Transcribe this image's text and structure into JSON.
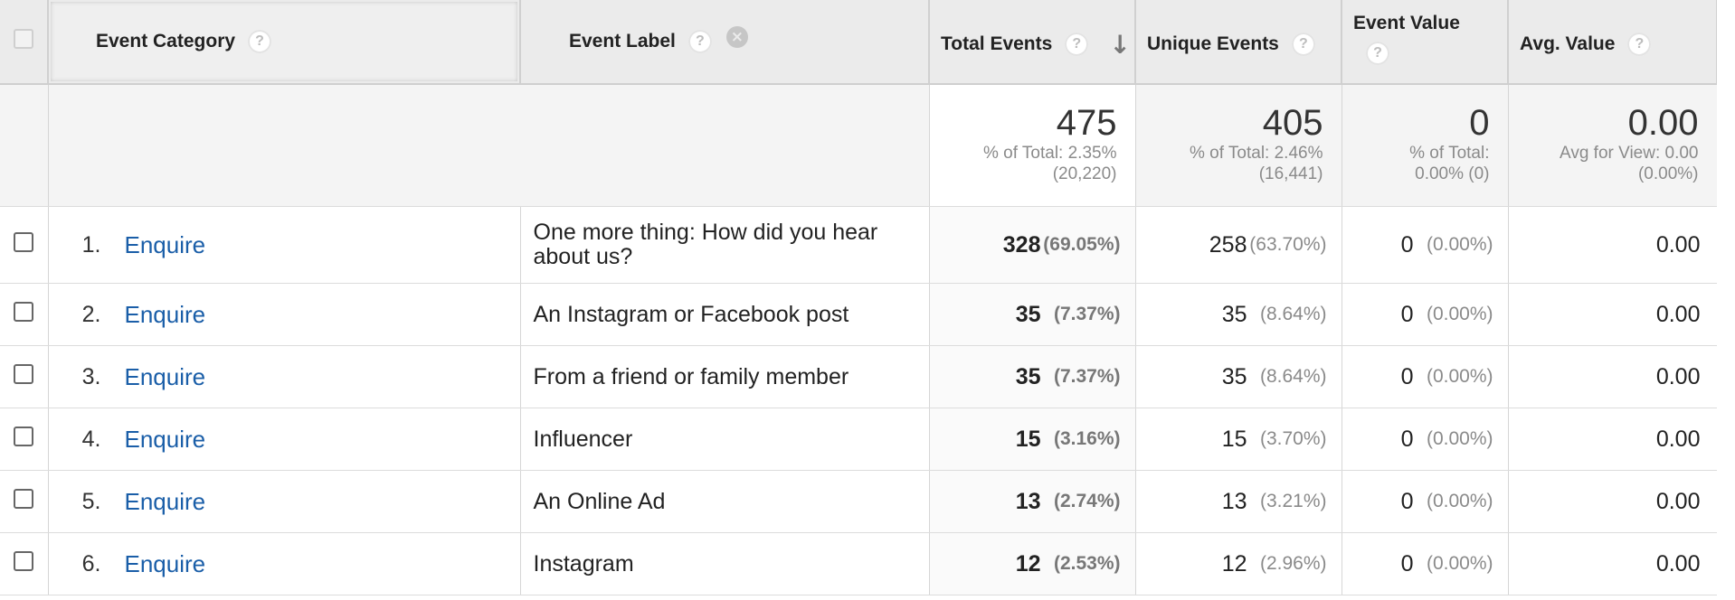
{
  "headers": {
    "event_category": "Event Category",
    "event_label": "Event Label",
    "total_events": "Total Events",
    "unique_events": "Unique Events",
    "event_value": "Event Value",
    "avg_value": "Avg. Value",
    "help_glyph": "?",
    "remove_glyph": "×",
    "sort_glyph": "↓"
  },
  "totals": {
    "total_events": {
      "value": "475",
      "line1": "% of Total: 2.35%",
      "line2": "(20,220)"
    },
    "unique_events": {
      "value": "405",
      "line1": "% of Total: 2.46%",
      "line2": "(16,441)"
    },
    "event_value": {
      "value": "0",
      "line1": "% of Total:",
      "line2": "0.00% (0)"
    },
    "avg_value": {
      "value": "0.00",
      "line1": "Avg for View: 0.00",
      "line2": "(0.00%)"
    }
  },
  "rows": [
    {
      "num": "1.",
      "category": "Enquire",
      "label": "One more thing: How did you hear about us?",
      "total": "328",
      "total_pct": "(69.05%)",
      "unique": "258",
      "unique_pct": "(63.70%)",
      "value": "0",
      "value_pct": "(0.00%)",
      "avg": "0.00"
    },
    {
      "num": "2.",
      "category": "Enquire",
      "label": "An Instagram or Facebook post",
      "total": "35",
      "total_pct": "(7.37%)",
      "unique": "35",
      "unique_pct": "(8.64%)",
      "value": "0",
      "value_pct": "(0.00%)",
      "avg": "0.00"
    },
    {
      "num": "3.",
      "category": "Enquire",
      "label": "From a friend or family member",
      "total": "35",
      "total_pct": "(7.37%)",
      "unique": "35",
      "unique_pct": "(8.64%)",
      "value": "0",
      "value_pct": "(0.00%)",
      "avg": "0.00"
    },
    {
      "num": "4.",
      "category": "Enquire",
      "label": "Influencer",
      "total": "15",
      "total_pct": "(3.16%)",
      "unique": "15",
      "unique_pct": "(3.70%)",
      "value": "0",
      "value_pct": "(0.00%)",
      "avg": "0.00"
    },
    {
      "num": "5.",
      "category": "Enquire",
      "label": "An Online Ad",
      "total": "13",
      "total_pct": "(2.74%)",
      "unique": "13",
      "unique_pct": "(3.21%)",
      "value": "0",
      "value_pct": "(0.00%)",
      "avg": "0.00"
    },
    {
      "num": "6.",
      "category": "Enquire",
      "label": "Instagram",
      "total": "12",
      "total_pct": "(2.53%)",
      "unique": "12",
      "unique_pct": "(2.96%)",
      "value": "0",
      "value_pct": "(0.00%)",
      "avg": "0.00"
    }
  ]
}
